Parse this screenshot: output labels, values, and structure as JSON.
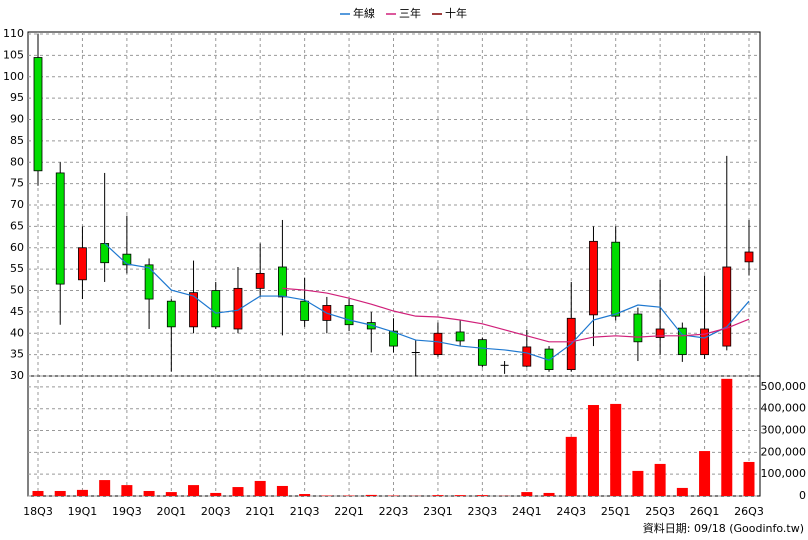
{
  "chart_data": [
    {
      "type": "candlestick",
      "categories": [
        "18Q3",
        null,
        "19Q1",
        null,
        "19Q3",
        null,
        "20Q1",
        null,
        "20Q3",
        null,
        "21Q1",
        null,
        "21Q3",
        null,
        "22Q1",
        null,
        "22Q3",
        null,
        "23Q1",
        null,
        "23Q3",
        null,
        "24Q1",
        null,
        "24Q3",
        null,
        "25Q1",
        null,
        "25Q3",
        null,
        "26Q1",
        null,
        "26Q3"
      ],
      "open": [
        104.5,
        77.5,
        52.5,
        61,
        58.5,
        56,
        47.5,
        41.5,
        50,
        41,
        50.5,
        55.5,
        47.5,
        43,
        46.5,
        42.5,
        40.5,
        35.5,
        35,
        40.3,
        38.5,
        32.5,
        32.3,
        36.3,
        31.5,
        44.3,
        61.3,
        44.5,
        39,
        41.2,
        35,
        37,
        56.7
      ],
      "high": [
        110,
        80,
        65,
        77.5,
        67.5,
        57.5,
        48,
        57,
        52,
        55.5,
        61,
        66.5,
        53,
        48.5,
        48,
        45,
        43.5,
        38.5,
        42.5,
        43,
        39,
        33.5,
        40.8,
        37,
        52,
        65,
        65,
        46,
        52.5,
        42.5,
        53.5,
        81.5,
        66.5
      ],
      "low": [
        74.5,
        42,
        48,
        52,
        54,
        41,
        31,
        40,
        41,
        40,
        48.5,
        39.5,
        41.5,
        40,
        40.5,
        35.5,
        35.5,
        30,
        34.5,
        37,
        32,
        30.5,
        32,
        31,
        31,
        37,
        43,
        33.5,
        35,
        33.3,
        34,
        36,
        53.5
      ],
      "close": [
        78,
        51.5,
        60,
        56.5,
        56,
        48,
        41.5,
        49.5,
        41.5,
        50.5,
        54,
        48.5,
        43,
        46.5,
        42,
        41,
        37,
        35.5,
        40,
        38.2,
        32.5,
        32.5,
        36.8,
        31.5,
        43.5,
        61.5,
        44,
        38,
        41,
        35,
        41,
        55.5,
        59
      ],
      "up_color": "#ff0000",
      "down_color": "#00dd00",
      "flat_color": "#000000",
      "series": [
        {
          "name": "年線",
          "color": "#1e78d0",
          "values": [
            null,
            null,
            null,
            61,
            56.2,
            55.3,
            50.1,
            48.7,
            44.7,
            45.4,
            48.7,
            48.7,
            47.8,
            44.7,
            43.1,
            41.9,
            40.3,
            38.4,
            38,
            37,
            36.5,
            36.1,
            35.4,
            33.7,
            37.5,
            43.1,
            44.5,
            46.6,
            46.1,
            39.6,
            38.9,
            41.5,
            47.5
          ]
        },
        {
          "name": "三年",
          "color": "#d0207a",
          "values": [
            null,
            null,
            null,
            null,
            null,
            null,
            null,
            null,
            null,
            null,
            null,
            50.5,
            50.1,
            49.4,
            48.2,
            46.8,
            45.2,
            44,
            43.8,
            43.1,
            42.2,
            40.8,
            39.4,
            38,
            38,
            39.1,
            39.4,
            39.1,
            39.4,
            39.4,
            39.8,
            41.2,
            43.3
          ]
        },
        {
          "name": "十年",
          "color": "#800000",
          "values": [
            null,
            null,
            null,
            null,
            null,
            null,
            null,
            null,
            null,
            null,
            null,
            null,
            null,
            null,
            null,
            null,
            null,
            null,
            null,
            null,
            null,
            null,
            null,
            null,
            null,
            null,
            null,
            null,
            null,
            null,
            null,
            null,
            null
          ]
        }
      ],
      "ylim": [
        30,
        110
      ],
      "yticks": [
        30,
        35,
        40,
        45,
        50,
        55,
        60,
        65,
        70,
        75,
        80,
        85,
        90,
        95,
        100,
        105,
        110
      ],
      "grid": true,
      "legend": "top"
    },
    {
      "type": "bar",
      "color": "#ff0000",
      "values": [
        23000,
        23000,
        28000,
        73000,
        50000,
        23000,
        18000,
        50000,
        14000,
        41000,
        69000,
        46000,
        9000,
        2000,
        2000,
        5000,
        2000,
        1000,
        4000,
        4000,
        4000,
        1000,
        18000,
        14000,
        271000,
        417000,
        422000,
        115000,
        147000,
        37000,
        206000,
        537000,
        156000
      ],
      "ylim": [
        0,
        550000
      ],
      "yticks": [
        0,
        {
          "value": 100000,
          "label": "100,000"
        },
        {
          "value": 200000,
          "label": "200,000"
        },
        {
          "value": 300000,
          "label": "300,000"
        },
        {
          "value": 400000,
          "label": "400,000"
        },
        {
          "value": 500000,
          "label": "500,000"
        }
      ],
      "grid": true
    }
  ],
  "footer": "資料日期: 09/18 (Goodinfo.tw)"
}
